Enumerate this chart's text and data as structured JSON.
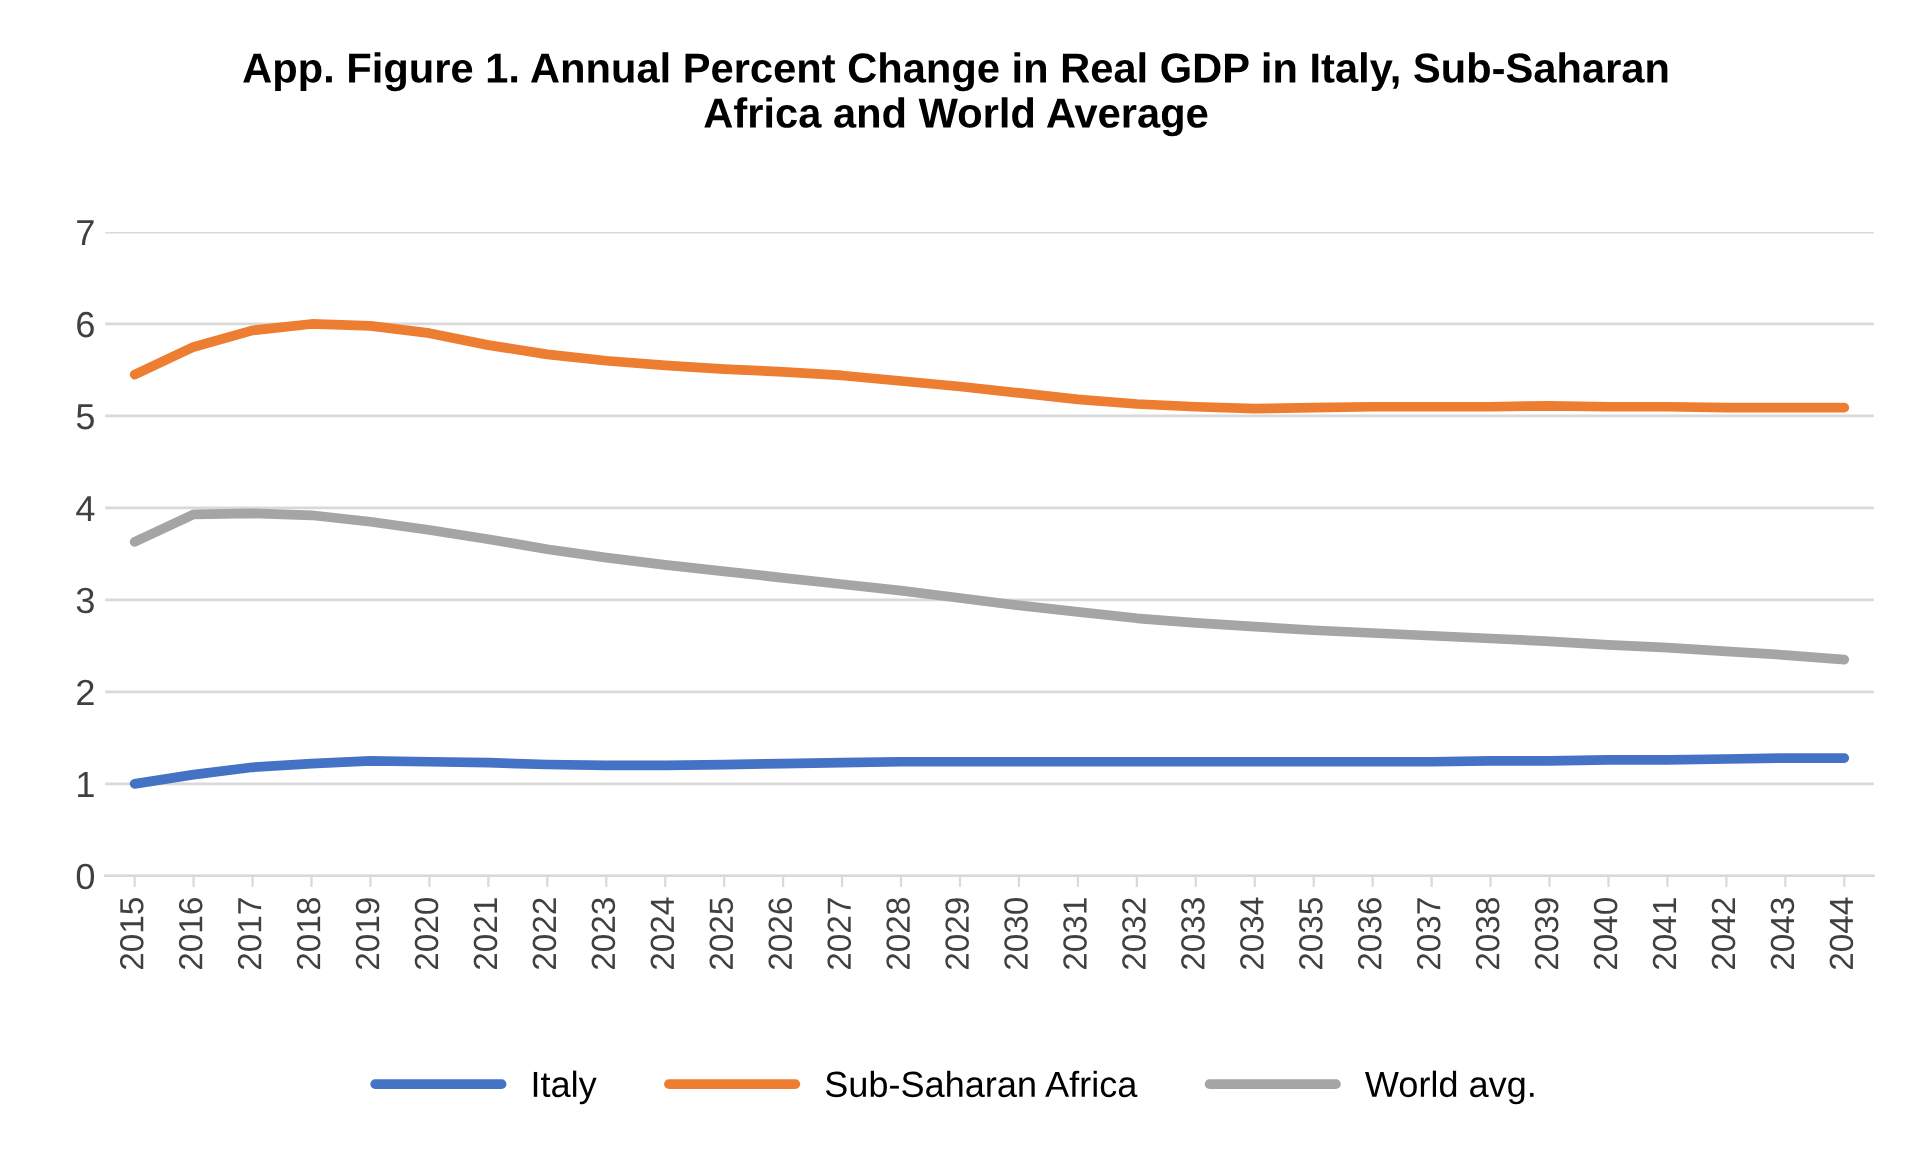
{
  "chart_data": {
    "type": "line",
    "title": "App. Figure 1. Annual Percent Change in Real GDP in Italy, Sub-Saharan Africa and World Average",
    "categories": [
      "2015",
      "2016",
      "2017",
      "2018",
      "2019",
      "2020",
      "2021",
      "2022",
      "2023",
      "2024",
      "2025",
      "2026",
      "2027",
      "2028",
      "2029",
      "2030",
      "2031",
      "2032",
      "2033",
      "2034",
      "2035",
      "2036",
      "2037",
      "2038",
      "2039",
      "2040",
      "2041",
      "2042",
      "2043",
      "2044"
    ],
    "series": [
      {
        "name": "Italy",
        "color": "#4472c4",
        "values": [
          1.0,
          1.1,
          1.18,
          1.22,
          1.25,
          1.24,
          1.23,
          1.21,
          1.2,
          1.2,
          1.21,
          1.22,
          1.23,
          1.24,
          1.24,
          1.24,
          1.24,
          1.24,
          1.24,
          1.24,
          1.24,
          1.24,
          1.24,
          1.25,
          1.25,
          1.26,
          1.26,
          1.27,
          1.28,
          1.28
        ]
      },
      {
        "name": "Sub-Saharan Africa",
        "color": "#ed7d31",
        "values": [
          5.45,
          5.75,
          5.93,
          6.0,
          5.98,
          5.9,
          5.77,
          5.67,
          5.6,
          5.55,
          5.51,
          5.48,
          5.44,
          5.38,
          5.32,
          5.25,
          5.18,
          5.13,
          5.1,
          5.08,
          5.09,
          5.1,
          5.1,
          5.1,
          5.11,
          5.1,
          5.1,
          5.09,
          5.09,
          5.09
        ]
      },
      {
        "name": "World avg.",
        "color": "#a5a5a5",
        "values": [
          3.63,
          3.93,
          3.94,
          3.92,
          3.85,
          3.76,
          3.66,
          3.55,
          3.46,
          3.38,
          3.31,
          3.24,
          3.17,
          3.1,
          3.02,
          2.94,
          2.87,
          2.8,
          2.75,
          2.71,
          2.67,
          2.64,
          2.61,
          2.58,
          2.55,
          2.51,
          2.48,
          2.44,
          2.4,
          2.35
        ]
      }
    ],
    "ylim": [
      0,
      7
    ],
    "yticks": [
      0,
      1,
      2,
      3,
      4,
      5,
      6,
      7
    ],
    "grid": "y",
    "legend": "bottom",
    "marker": "none",
    "line_style": "solid"
  }
}
